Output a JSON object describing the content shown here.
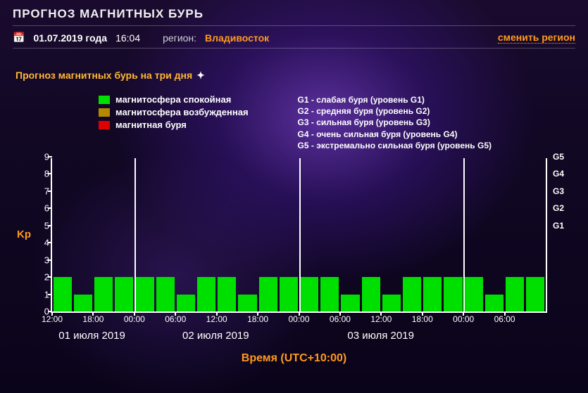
{
  "header": {
    "title": "ПРОГНОЗ МАГНИТНЫХ БУРЬ",
    "date": "01.07.2019 года",
    "time": "16:04",
    "region_label": "регион:",
    "region_value": "Владивосток",
    "change_region": "сменить регион"
  },
  "subtitle": "Прогноз магнитных бурь на три дня",
  "legend": {
    "items": [
      {
        "label": "магнитосфера спокойная",
        "color": "#00e000"
      },
      {
        "label": "магнитосфера возбужденная",
        "color": "#b58a00"
      },
      {
        "label": "магнитная буря",
        "color": "#e00000"
      }
    ],
    "g_levels": [
      "G1 - слабая буря (уровень G1)",
      "G2 - средняя буря (уровень G2)",
      "G3 - сильная буря (уровень G3)",
      "G4 - очень сильная буря (уровень G4)",
      "G5 - экстремально сильная буря (уровень G5)"
    ]
  },
  "chart": {
    "type": "bar",
    "ylabel": "Kp",
    "ylim": [
      0,
      9
    ],
    "ytick_step": 1,
    "right_g": [
      "G1",
      "G2",
      "G3",
      "G4",
      "G5"
    ],
    "right_g_at": [
      5,
      6,
      7,
      8,
      9
    ],
    "bar_color_calm": "#00e000",
    "bar_color_excited": "#b58a00",
    "bar_color_storm": "#e00000",
    "axis_color": "#ffffff",
    "background": "transparent",
    "values": [
      2,
      1,
      2,
      2,
      2,
      2,
      1,
      2,
      2,
      1,
      2,
      2,
      2,
      2,
      1,
      2,
      1,
      2,
      2,
      2,
      2,
      1,
      2,
      2
    ],
    "x_ticks": [
      "12:00",
      "18:00",
      "00:00",
      "06:00",
      "12:00",
      "18:00",
      "00:00",
      "06:00",
      "12:00",
      "18:00",
      "00:00",
      "06:00"
    ],
    "x_tick_positions": [
      0,
      2,
      4,
      6,
      8,
      10,
      12,
      14,
      16,
      18,
      20,
      22
    ],
    "day_separators_after_index": [
      4,
      12,
      20
    ],
    "days": [
      {
        "label": "01 июля 2019",
        "center_at": 2
      },
      {
        "label": "02 июля 2019",
        "center_at": 8
      },
      {
        "label": "03 июля 2019",
        "center_at": 16
      }
    ],
    "x_title": "Время (UTC+10:00)"
  },
  "colors": {
    "accent": "#ff9a1f",
    "text": "#ffffff"
  }
}
